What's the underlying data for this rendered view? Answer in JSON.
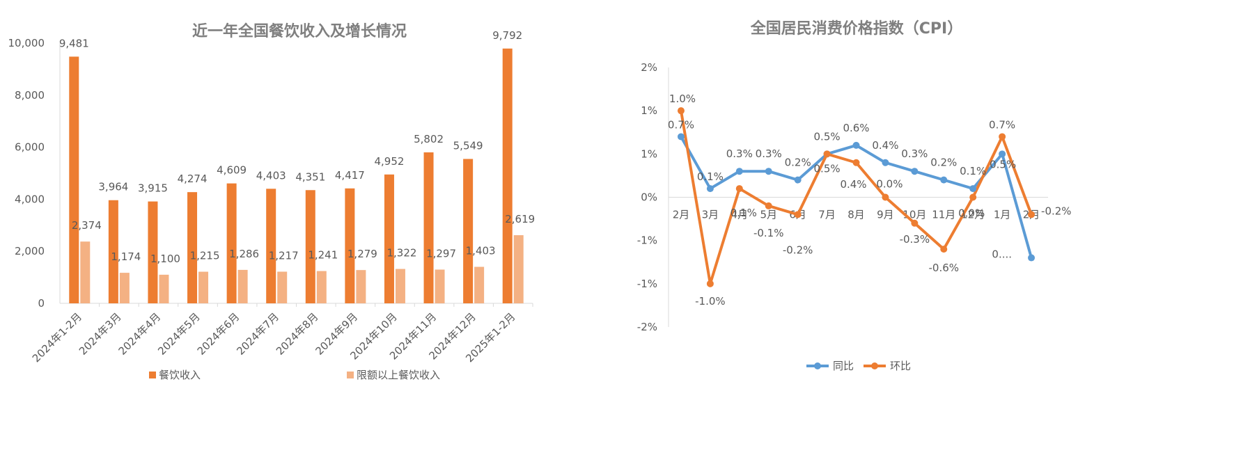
{
  "chart_data": [
    {
      "type": "bar",
      "title": "近一年全国餐饮收入及增长情况",
      "categories": [
        "2024年1-2月",
        "2024年3月",
        "2024年4月",
        "2024年5月",
        "2024年6月",
        "2024年7月",
        "2024年8月",
        "2024年9月",
        "2024年10月",
        "2024年11月",
        "2024年12月",
        "2025年1-2月"
      ],
      "series": [
        {
          "name": "餐饮收入",
          "color": "#ed7d31",
          "values": [
            9481,
            3964,
            3915,
            4274,
            4609,
            4403,
            4351,
            4417,
            4952,
            5802,
            5549,
            9792
          ],
          "labels": [
            "9,481",
            "3,964",
            "3,915",
            "4,274",
            "4,609",
            "4,403",
            "4,351",
            "4,417",
            "4,952",
            "5,802",
            "5,549",
            "9,792"
          ]
        },
        {
          "name": "限额以上餐饮收入",
          "color": "#f4b183",
          "values": [
            2374,
            1174,
            1100,
            1215,
            1286,
            1217,
            1241,
            1279,
            1322,
            1297,
            1403,
            2619
          ],
          "labels": [
            "2,374",
            "1,174",
            "1,100",
            "1,215",
            "1,286",
            "1,217",
            "1,241",
            "1,279",
            "1,322",
            "1,297",
            "1,403",
            "2,619"
          ]
        }
      ],
      "ylim": [
        0,
        10000
      ],
      "yticks": [
        0,
        2000,
        4000,
        6000,
        8000,
        10000
      ],
      "yticklabels": [
        "0",
        "2,000",
        "4,000",
        "6,000",
        "8,000",
        "10,000"
      ],
      "legend": "bottom"
    },
    {
      "type": "line",
      "title": "全国居民消费价格指数（CPI）",
      "categories": [
        "2月",
        "3月",
        "4月",
        "5月",
        "6月",
        "7月",
        "8月",
        "9月",
        "10月",
        "11月",
        "12月",
        "1月",
        "2月"
      ],
      "series": [
        {
          "name": "同比",
          "color": "#5b9bd5",
          "values": [
            0.7,
            0.1,
            0.3,
            0.3,
            0.2,
            0.5,
            0.6,
            0.4,
            0.3,
            0.2,
            0.1,
            0.5,
            -0.7
          ],
          "labels": [
            "0.7%",
            "0.1%",
            "0.3%",
            "0.3%",
            "0.2%",
            "0.5%",
            "0.6%",
            "0.4%",
            "0.3%",
            "0.2%",
            "0.1%",
            "0.5%",
            "0...."
          ]
        },
        {
          "name": "环比",
          "color": "#ed7d31",
          "values": [
            1.0,
            -1.0,
            0.1,
            -0.1,
            -0.2,
            0.5,
            0.4,
            0.0,
            -0.3,
            -0.6,
            0.0,
            0.7,
            -0.2
          ],
          "labels": [
            "1.0%",
            "-1.0%",
            "0.1%",
            "-0.1%",
            "-0.2%",
            "0.5%",
            "0.4%",
            "0.0%",
            "-0.3%",
            "-0.6%",
            "0.0%",
            "0.7%",
            "-0.2%"
          ]
        }
      ],
      "ylim": [
        -1.5,
        1.5
      ],
      "yticks": [
        -1.5,
        -1.0,
        -0.5,
        0,
        0.5,
        1.0,
        1.5
      ],
      "yticklabels": [
        "-2%",
        "-1%",
        "-1%",
        "0%",
        "1%",
        "1%",
        "2%"
      ],
      "legend": "bottom"
    }
  ]
}
